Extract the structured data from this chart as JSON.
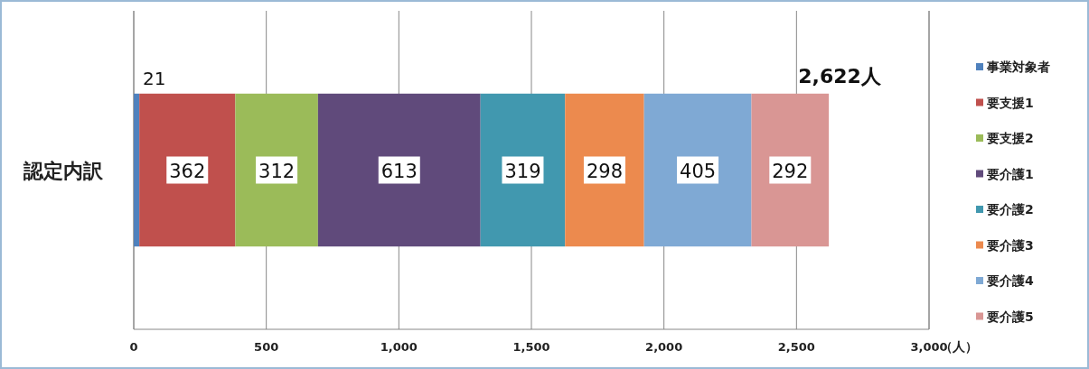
{
  "chart_data": {
    "type": "bar",
    "orientation": "horizontal",
    "stacked": true,
    "categories": [
      "認定内訳"
    ],
    "series": [
      {
        "name": "事業対象者",
        "color": "#4f81bd",
        "values": [
          21
        ]
      },
      {
        "name": "要支援1",
        "color": "#c0504d",
        "values": [
          362
        ]
      },
      {
        "name": "要支援2",
        "color": "#9bbb59",
        "values": [
          312
        ]
      },
      {
        "name": "要介護1",
        "color": "#604a7b",
        "values": [
          613
        ]
      },
      {
        "name": "要介護2",
        "color": "#4198af",
        "values": [
          319
        ]
      },
      {
        "name": "要介護3",
        "color": "#ec8a4e",
        "values": [
          298
        ]
      },
      {
        "name": "要介護4",
        "color": "#7fa9d4",
        "values": [
          405
        ]
      },
      {
        "name": "要介護5",
        "color": "#d99694",
        "values": [
          292
        ]
      }
    ],
    "xlim": [
      0,
      3000
    ],
    "xticks": [
      0,
      500,
      {
        "value": 1000,
        "label": "1,000"
      },
      {
        "value": 1500,
        "label": "1,500"
      },
      {
        "value": 2000,
        "label": "2,000"
      },
      {
        "value": 2500,
        "label": "2,500"
      },
      {
        "value": 3000,
        "label": "3,000"
      }
    ],
    "xlabel": "（人）",
    "totals": [
      "2,622人"
    ],
    "data_labels": true,
    "grid": "x",
    "legend": "right"
  }
}
